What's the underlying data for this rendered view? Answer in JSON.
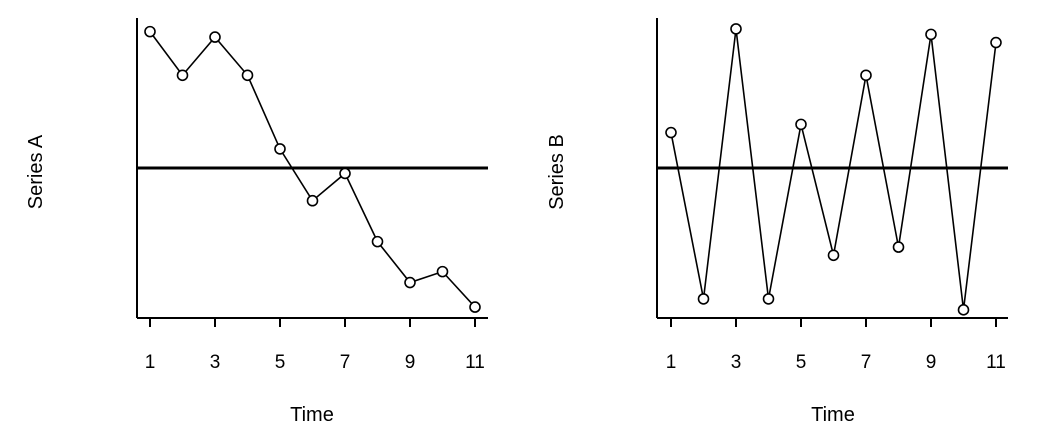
{
  "chart_data": [
    {
      "type": "line",
      "title": "",
      "xlabel": "Time",
      "ylabel": "Series A",
      "x": [
        1,
        2,
        3,
        4,
        5,
        6,
        7,
        8,
        9,
        10,
        11
      ],
      "series": [
        {
          "values": [
            2.5,
            1.7,
            2.4,
            1.7,
            0.35,
            -0.6,
            -0.1,
            -1.35,
            -2.1,
            -1.9,
            -2.55
          ]
        }
      ],
      "reference_line": 0,
      "xticks": [
        "1",
        "3",
        "5",
        "7",
        "9",
        "11"
      ],
      "xlim": [
        0.6,
        11.4
      ],
      "ylim": [
        -2.75,
        2.75
      ],
      "grid": false
    },
    {
      "type": "line",
      "title": "",
      "xlabel": "Time",
      "ylabel": "Series B",
      "x": [
        1,
        2,
        3,
        4,
        5,
        6,
        7,
        8,
        9,
        10,
        11
      ],
      "series": [
        {
          "values": [
            0.65,
            -2.4,
            2.55,
            -2.4,
            0.8,
            -1.6,
            1.7,
            -1.45,
            2.45,
            -2.6,
            2.3
          ]
        }
      ],
      "reference_line": 0,
      "xticks": [
        "1",
        "3",
        "5",
        "7",
        "9",
        "11"
      ],
      "xlim": [
        0.6,
        11.4
      ],
      "ylim": [
        -2.75,
        2.75
      ],
      "grid": false
    }
  ]
}
